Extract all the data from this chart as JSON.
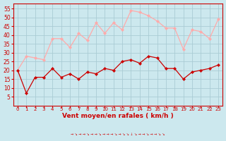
{
  "x": [
    0,
    1,
    2,
    3,
    4,
    5,
    6,
    7,
    8,
    9,
    10,
    11,
    12,
    13,
    14,
    15,
    16,
    17,
    18,
    19,
    20,
    21,
    22,
    23
  ],
  "wind_avg": [
    20,
    7,
    16,
    16,
    21,
    16,
    18,
    15,
    19,
    18,
    21,
    20,
    25,
    26,
    24,
    28,
    27,
    21,
    21,
    15,
    19,
    20,
    21,
    23
  ],
  "wind_gust": [
    20,
    28,
    27,
    26,
    38,
    38,
    33,
    41,
    37,
    47,
    41,
    47,
    43,
    54,
    53,
    51,
    48,
    44,
    44,
    32,
    43,
    42,
    38,
    49
  ],
  "bg_color": "#cce8ee",
  "grid_color": "#aaccd4",
  "avg_color": "#cc0000",
  "gust_color": "#ffaaaa",
  "xlabel": "Vent moyen/en rafales ( km/h )",
  "xlabel_color": "#cc0000",
  "tick_color": "#cc0000",
  "ylim": [
    0,
    58
  ],
  "yticks": [
    5,
    10,
    15,
    20,
    25,
    30,
    35,
    40,
    45,
    50,
    55
  ],
  "xlim": [
    -0.5,
    23.5
  ],
  "arrow_row": "→ ↘ → → ↘ → → ↘ → → → ↘ → ↘ ↘ ↓ ↘ → → ↘ → → ↘ ↘"
}
